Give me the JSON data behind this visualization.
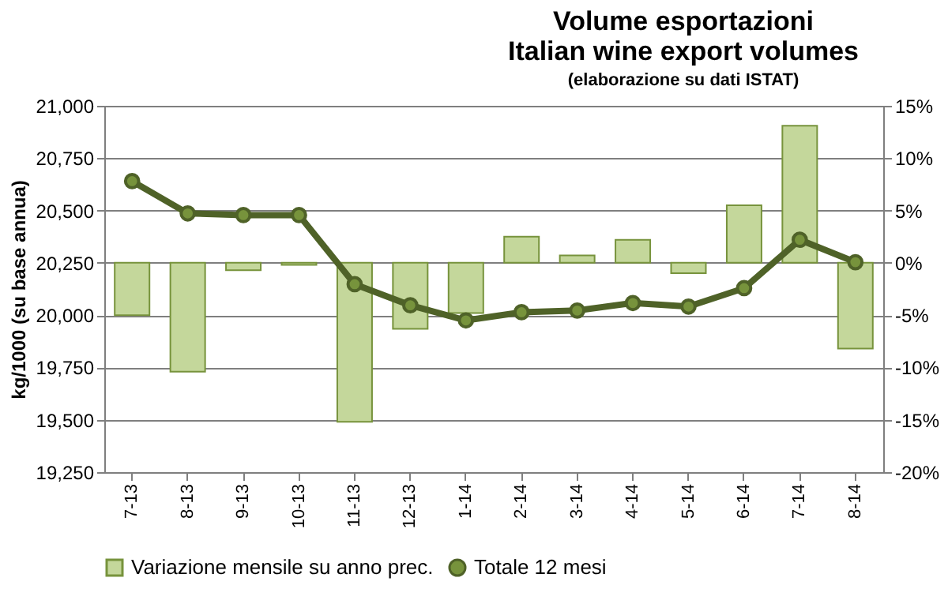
{
  "chart_data": {
    "type": "bar",
    "title": "Volume esportazioni\nItalian wine export volumes",
    "subtitle": "(elaborazione su dati ISTAT)",
    "ylabel": "kg/1000 (su base annua)",
    "categories": [
      "7-13",
      "8-13",
      "9-13",
      "10-13",
      "11-13",
      "12-13",
      "1-14",
      "2-14",
      "3-14",
      "4-14",
      "5-14",
      "6-14",
      "7-14",
      "8-14"
    ],
    "series": [
      {
        "name": "Variazione mensile su anno prec.",
        "axis": "y2",
        "color": "#c4d79b",
        "values": [
          -5.0,
          -10.4,
          -0.7,
          -0.2,
          -15.2,
          -6.3,
          -4.8,
          2.5,
          0.7,
          2.2,
          -1.0,
          5.5,
          13.1,
          -8.2
        ]
      },
      {
        "name": "Totale 12 mesi",
        "type": "line",
        "axis": "y",
        "color": "#4f6228",
        "values": [
          20640,
          20486,
          20478,
          20478,
          20148,
          20047,
          19975,
          20014,
          20022,
          20058,
          20041,
          20129,
          20360,
          20253
        ]
      }
    ],
    "ylim": [
      19250,
      21000
    ],
    "yticks": [
      {
        "value": 19250,
        "label": "19,250"
      },
      {
        "value": 19500,
        "label": "19,500"
      },
      {
        "value": 19750,
        "label": "19,750"
      },
      {
        "value": 20000,
        "label": "20,000"
      },
      {
        "value": 20250,
        "label": "20,250"
      },
      {
        "value": 20500,
        "label": "20,500"
      },
      {
        "value": 20750,
        "label": "20,750"
      },
      {
        "value": 21000,
        "label": "21,000"
      }
    ],
    "y2lim": [
      -20,
      15
    ],
    "y2ticks": [
      {
        "value": -20,
        "label": "-20%"
      },
      {
        "value": -15,
        "label": "-15%"
      },
      {
        "value": -10,
        "label": "-10%"
      },
      {
        "value": -5,
        "label": "-5%"
      },
      {
        "value": 0,
        "label": "0%"
      },
      {
        "value": 5,
        "label": "5%"
      },
      {
        "value": 10,
        "label": "10%"
      },
      {
        "value": 15,
        "label": "15%"
      }
    ],
    "grid": "y",
    "legend": "bottom",
    "marker": "circle",
    "line_style": "solid"
  }
}
